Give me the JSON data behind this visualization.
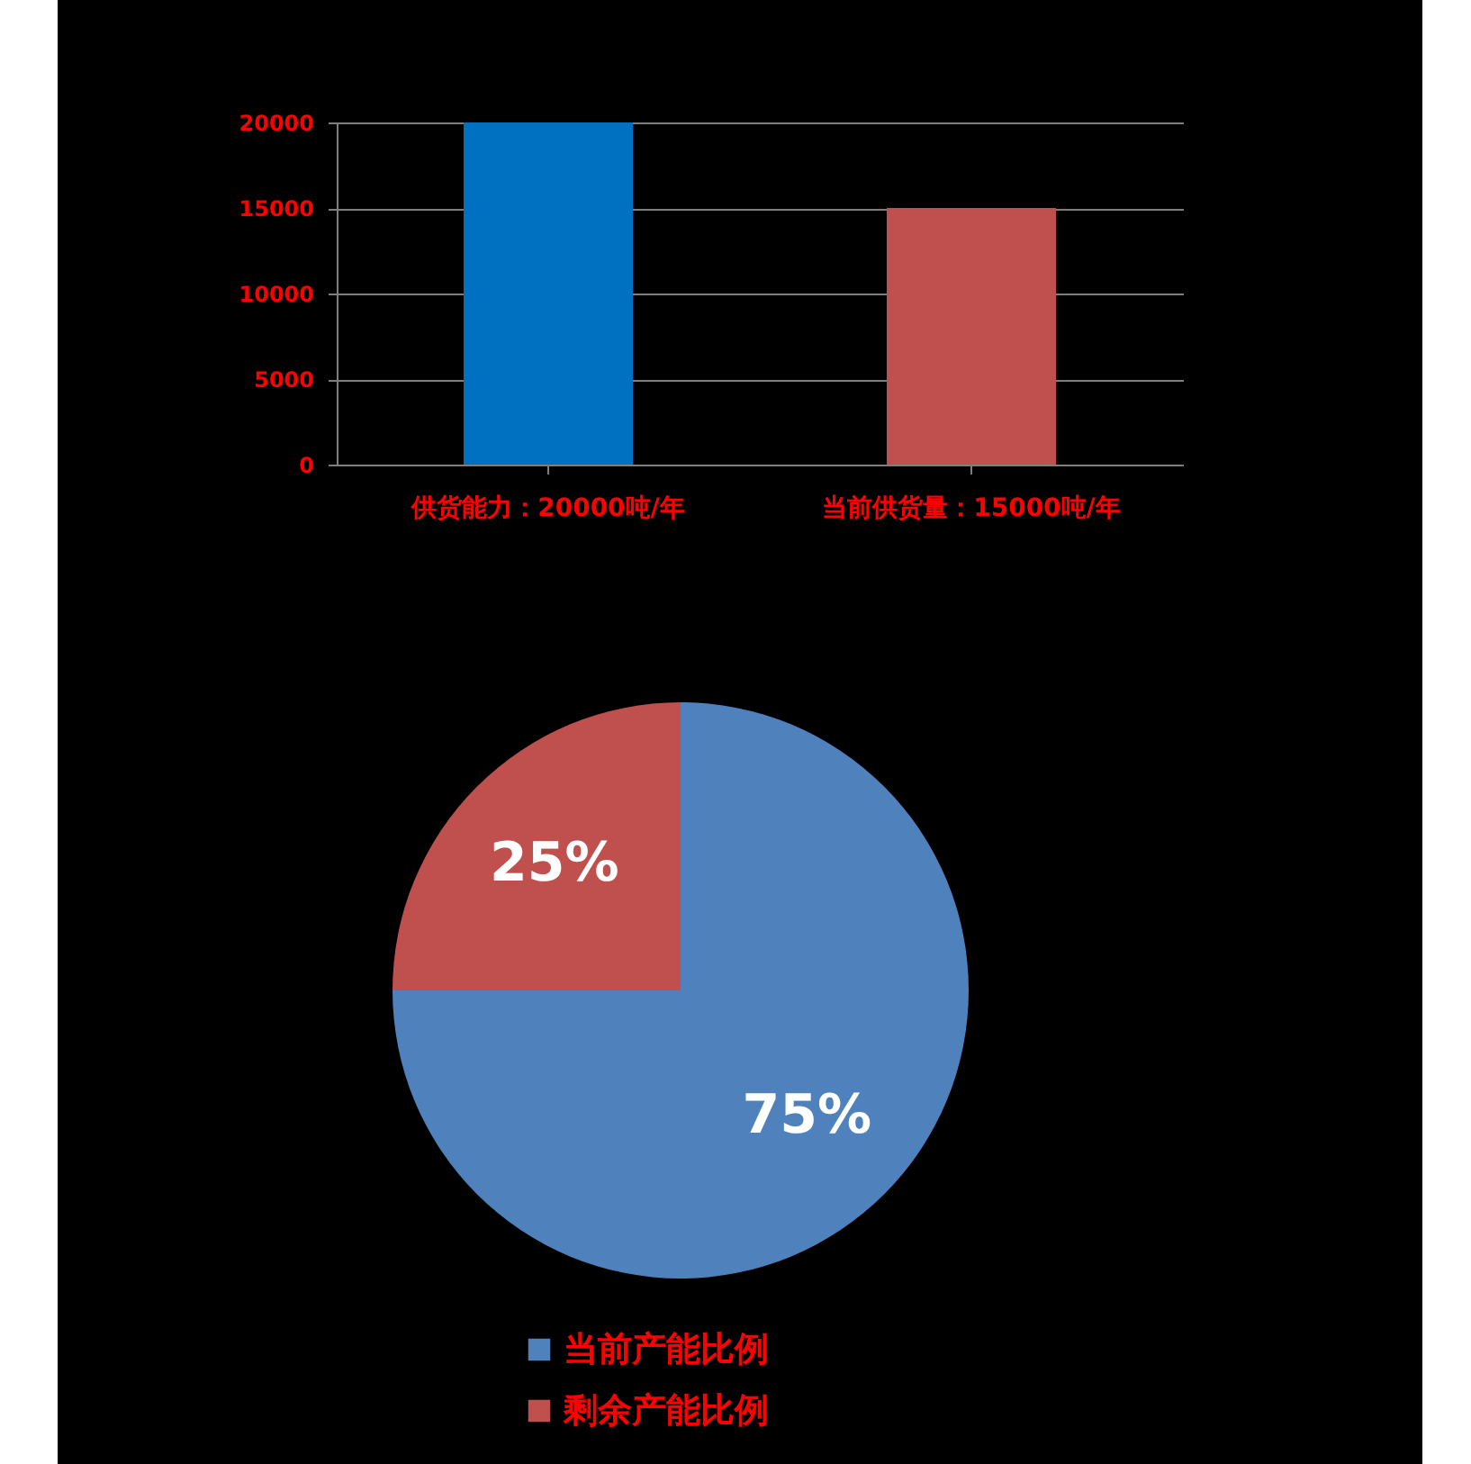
{
  "chart_data": [
    {
      "type": "bar",
      "categories": [
        "供货能力：20000吨/年",
        "当前供货量：15000吨/年"
      ],
      "values": [
        20000,
        15000
      ],
      "colors": [
        "#0070c0",
        "#c0504d"
      ],
      "ylim": [
        0,
        20000
      ],
      "yticks": [
        0,
        5000,
        10000,
        15000,
        20000
      ],
      "grid": "y"
    },
    {
      "type": "pie",
      "categories": [
        "当前产能比例",
        "剩余产能比例"
      ],
      "values": [
        75,
        25
      ],
      "colors": [
        "#4f81bd",
        "#c0504d"
      ],
      "value_labels": [
        "75%",
        "25%"
      ],
      "legend": "bottom"
    }
  ]
}
